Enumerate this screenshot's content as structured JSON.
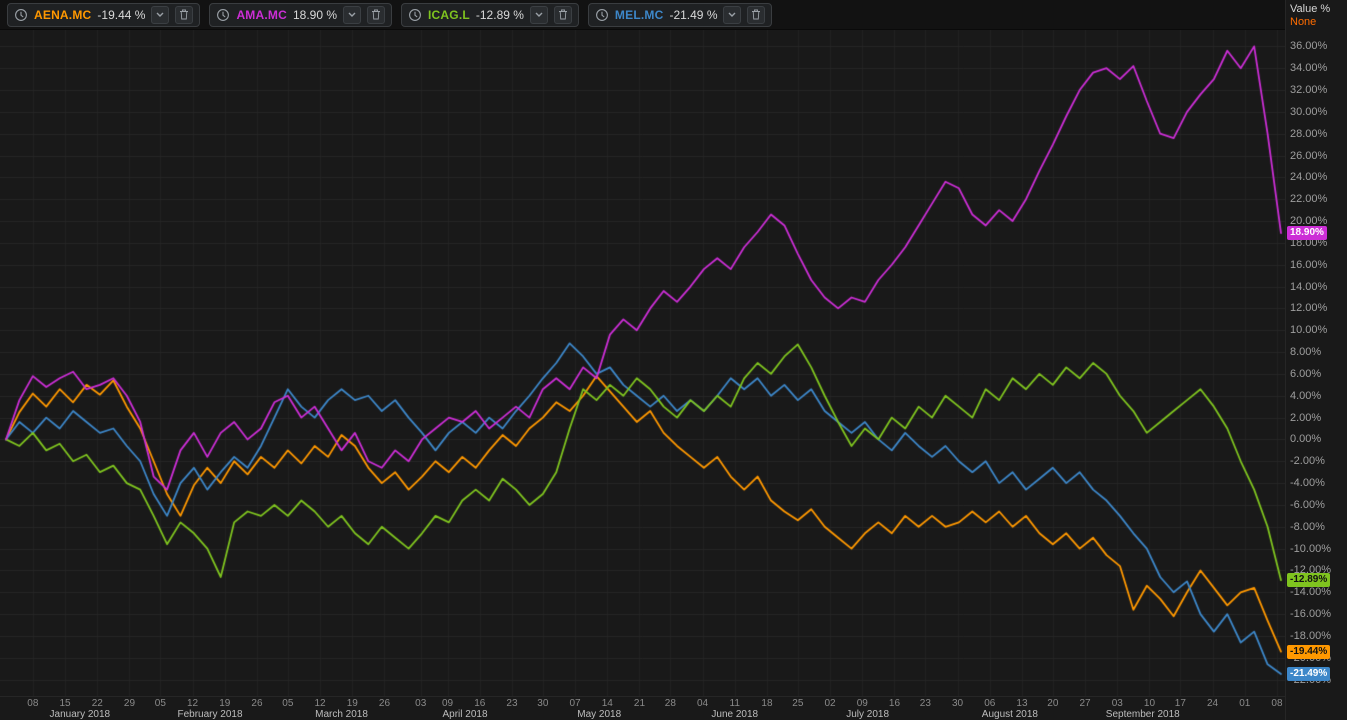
{
  "legend": {
    "items": [
      {
        "symbol": "AENA.MC",
        "change": "-19.44 %",
        "color": "#ff9800"
      },
      {
        "symbol": "AMA.MC",
        "change": "18.90 %",
        "color": "#cc2ed6"
      },
      {
        "symbol": "ICAG.L",
        "change": "-12.89 %",
        "color": "#7fc41f"
      },
      {
        "symbol": "MEL.MC",
        "change": "-21.49 %",
        "color": "#3d87c9"
      }
    ],
    "icons": {
      "interval": "clock-icon",
      "dropdown": "chevron-down-icon",
      "remove": "trash-icon"
    }
  },
  "axis": {
    "value_title": "Value %",
    "scale_mode": "None",
    "y_tick_min": -22,
    "y_tick_max": 36,
    "y_tick_step": 2,
    "badges": [
      {
        "label": "18.90%",
        "value": 18.9,
        "color": "#cc2ed6",
        "text": "#ffffff"
      },
      {
        "label": "-12.89%",
        "value": -12.89,
        "color": "#7fc41f",
        "text": "#111111"
      },
      {
        "label": "-19.44%",
        "value": -19.44,
        "color": "#ff9800",
        "text": "#111111"
      },
      {
        "label": "-21.49%",
        "value": -21.49,
        "color": "#3d87c9",
        "text": "#ffffff"
      }
    ]
  },
  "time_axis": {
    "day_ticks": [
      {
        "t": 2.0,
        "label": "08"
      },
      {
        "t": 4.4,
        "label": "15"
      },
      {
        "t": 6.8,
        "label": "22"
      },
      {
        "t": 9.2,
        "label": "29"
      },
      {
        "t": 11.5,
        "label": "05"
      },
      {
        "t": 13.9,
        "label": "12"
      },
      {
        "t": 16.3,
        "label": "19"
      },
      {
        "t": 18.7,
        "label": "26"
      },
      {
        "t": 21.0,
        "label": "05"
      },
      {
        "t": 23.4,
        "label": "12"
      },
      {
        "t": 25.8,
        "label": "19"
      },
      {
        "t": 28.2,
        "label": "26"
      },
      {
        "t": 30.9,
        "label": "03"
      },
      {
        "t": 32.9,
        "label": "09"
      },
      {
        "t": 35.3,
        "label": "16"
      },
      {
        "t": 37.7,
        "label": "23"
      },
      {
        "t": 40.0,
        "label": "30"
      },
      {
        "t": 42.4,
        "label": "07"
      },
      {
        "t": 44.8,
        "label": "14"
      },
      {
        "t": 47.2,
        "label": "21"
      },
      {
        "t": 49.5,
        "label": "28"
      },
      {
        "t": 51.9,
        "label": "04"
      },
      {
        "t": 54.3,
        "label": "11"
      },
      {
        "t": 56.7,
        "label": "18"
      },
      {
        "t": 59.0,
        "label": "25"
      },
      {
        "t": 61.4,
        "label": "02"
      },
      {
        "t": 63.8,
        "label": "09"
      },
      {
        "t": 66.2,
        "label": "16"
      },
      {
        "t": 68.5,
        "label": "23"
      },
      {
        "t": 70.9,
        "label": "30"
      },
      {
        "t": 73.3,
        "label": "06"
      },
      {
        "t": 75.7,
        "label": "13"
      },
      {
        "t": 78.0,
        "label": "20"
      },
      {
        "t": 80.4,
        "label": "27"
      },
      {
        "t": 82.8,
        "label": "03"
      },
      {
        "t": 85.2,
        "label": "10"
      },
      {
        "t": 87.5,
        "label": "17"
      },
      {
        "t": 89.9,
        "label": "24"
      },
      {
        "t": 92.3,
        "label": "01"
      },
      {
        "t": 94.7,
        "label": "08"
      }
    ],
    "month_labels": [
      {
        "t": 5.5,
        "label": "January 2018"
      },
      {
        "t": 15.2,
        "label": "February 2018"
      },
      {
        "t": 25.0,
        "label": "March 2018"
      },
      {
        "t": 34.2,
        "label": "April 2018"
      },
      {
        "t": 44.2,
        "label": "May 2018"
      },
      {
        "t": 54.3,
        "label": "June 2018"
      },
      {
        "t": 64.2,
        "label": "July 2018"
      },
      {
        "t": 74.8,
        "label": "August 2018"
      },
      {
        "t": 84.7,
        "label": "September 2018"
      }
    ]
  },
  "colors": {
    "background": "#191919",
    "grid_horizontal": "#262626",
    "grid_vertical": "#222222"
  },
  "chart_data": {
    "type": "line",
    "title": "",
    "xlabel": "",
    "ylabel": "Value %",
    "ylim": [
      -23.5,
      37.5
    ],
    "x_count": 96,
    "background": "#191919",
    "grid": true,
    "legend_position": "top-left",
    "series": [
      {
        "name": "AENA.MC",
        "color": "#ff9800",
        "last_change": "-19.44 %",
        "values": [
          0,
          2.5,
          4.2,
          3.0,
          4.6,
          3.4,
          5.0,
          4.1,
          5.4,
          3.0,
          1.0,
          -2.0,
          -5.0,
          -7.0,
          -4.2,
          -2.6,
          -4.0,
          -2.0,
          -3.2,
          -1.6,
          -2.6,
          -1.0,
          -2.2,
          -0.6,
          -1.6,
          0.4,
          -0.6,
          -2.6,
          -4.0,
          -3.0,
          -4.6,
          -3.4,
          -2.0,
          -3.0,
          -1.6,
          -2.6,
          -1.0,
          0.4,
          -0.6,
          1.0,
          2.0,
          3.4,
          2.6,
          4.0,
          5.8,
          4.4,
          3.0,
          1.6,
          2.6,
          0.6,
          -0.6,
          -1.6,
          -2.6,
          -1.6,
          -3.4,
          -4.6,
          -3.4,
          -5.6,
          -6.6,
          -7.4,
          -6.4,
          -8.0,
          -9.0,
          -10.0,
          -8.6,
          -7.6,
          -8.6,
          -7.0,
          -8.0,
          -7.0,
          -8.0,
          -7.6,
          -6.6,
          -7.6,
          -6.6,
          -8.0,
          -7.0,
          -8.6,
          -9.6,
          -8.6,
          -10.0,
          -9.0,
          -10.6,
          -11.6,
          -15.6,
          -13.4,
          -14.6,
          -16.2,
          -14.0,
          -12.0,
          -13.6,
          -15.2,
          -14.0,
          -13.6,
          -16.6,
          -19.44
        ]
      },
      {
        "name": "MEL.MC",
        "color": "#3d87c9",
        "last_change": "-21.49 %",
        "values": [
          0,
          1.6,
          0.6,
          2.0,
          1.0,
          2.6,
          1.6,
          0.6,
          1.0,
          -0.6,
          -2.0,
          -5.0,
          -7.0,
          -4.0,
          -2.6,
          -4.6,
          -3.0,
          -1.6,
          -2.6,
          -0.6,
          2.0,
          4.6,
          3.0,
          2.0,
          3.6,
          4.6,
          3.6,
          4.0,
          2.6,
          3.6,
          2.0,
          0.6,
          -1.0,
          0.6,
          1.6,
          0.6,
          2.0,
          1.0,
          2.6,
          4.0,
          5.6,
          7.0,
          8.8,
          7.6,
          6.0,
          6.6,
          5.0,
          4.0,
          3.0,
          4.0,
          2.6,
          3.6,
          2.6,
          4.0,
          5.6,
          4.6,
          5.6,
          4.0,
          5.0,
          3.6,
          4.6,
          2.6,
          1.6,
          0.6,
          1.6,
          0.0,
          -1.0,
          0.6,
          -0.6,
          -1.6,
          -0.6,
          -2.0,
          -3.0,
          -2.0,
          -4.0,
          -3.0,
          -4.6,
          -3.6,
          -2.6,
          -4.0,
          -3.0,
          -4.6,
          -5.6,
          -7.0,
          -8.6,
          -10.0,
          -12.6,
          -14.0,
          -13.0,
          -16.0,
          -17.6,
          -16.0,
          -18.6,
          -17.6,
          -20.6,
          -21.49
        ]
      },
      {
        "name": "ICAG.L",
        "color": "#7fc41f",
        "last_change": "-12.89 %",
        "values": [
          0,
          -0.6,
          0.6,
          -1.0,
          -0.4,
          -2.0,
          -1.4,
          -3.0,
          -2.4,
          -4.0,
          -4.6,
          -7.0,
          -9.6,
          -7.6,
          -8.6,
          -10.0,
          -12.6,
          -7.6,
          -6.6,
          -7.0,
          -6.0,
          -7.0,
          -5.6,
          -6.6,
          -8.0,
          -7.0,
          -8.6,
          -9.6,
          -8.0,
          -9.0,
          -10.0,
          -8.6,
          -7.0,
          -7.6,
          -5.6,
          -4.6,
          -5.6,
          -3.6,
          -4.6,
          -6.0,
          -5.0,
          -3.0,
          1.0,
          4.6,
          3.6,
          5.0,
          4.0,
          5.6,
          4.6,
          3.0,
          2.0,
          3.6,
          2.6,
          4.0,
          3.0,
          5.6,
          7.0,
          6.0,
          7.6,
          8.7,
          6.6,
          4.0,
          1.6,
          -0.6,
          1.0,
          0.0,
          2.0,
          1.0,
          3.0,
          2.0,
          4.0,
          3.0,
          2.0,
          4.6,
          3.6,
          5.6,
          4.6,
          6.0,
          5.0,
          6.6,
          5.6,
          7.0,
          6.0,
          4.0,
          2.6,
          0.6,
          1.6,
          2.6,
          3.6,
          4.6,
          3.0,
          1.0,
          -2.0,
          -4.6,
          -8.0,
          -12.89
        ]
      },
      {
        "name": "AMA.MC",
        "color": "#cc2ed6",
        "last_change": "18.90 %",
        "values": [
          0,
          3.6,
          5.8,
          4.8,
          5.6,
          6.2,
          4.6,
          5.0,
          5.6,
          4.0,
          1.6,
          -3.4,
          -4.6,
          -1.0,
          0.6,
          -1.6,
          0.6,
          1.6,
          0.0,
          1.0,
          3.4,
          4.0,
          2.0,
          3.0,
          1.0,
          -1.0,
          0.6,
          -2.0,
          -2.6,
          -1.0,
          -2.0,
          0.0,
          1.0,
          2.0,
          1.6,
          2.6,
          1.0,
          2.0,
          3.0,
          2.0,
          4.6,
          5.6,
          4.6,
          6.6,
          5.6,
          9.6,
          11.0,
          10.0,
          12.0,
          13.6,
          12.6,
          14.0,
          15.6,
          16.6,
          15.6,
          17.6,
          19.0,
          20.6,
          19.6,
          17.0,
          14.6,
          13.0,
          12.0,
          13.0,
          12.6,
          14.6,
          16.0,
          17.6,
          19.6,
          21.6,
          23.6,
          23.0,
          20.6,
          19.6,
          21.0,
          20.0,
          22.0,
          24.6,
          27.0,
          29.6,
          32.0,
          33.6,
          34.0,
          33.0,
          34.2,
          31.0,
          28.0,
          27.6,
          30.0,
          31.6,
          33.0,
          35.6,
          34.0,
          36.0,
          28.0,
          18.9
        ]
      }
    ]
  }
}
